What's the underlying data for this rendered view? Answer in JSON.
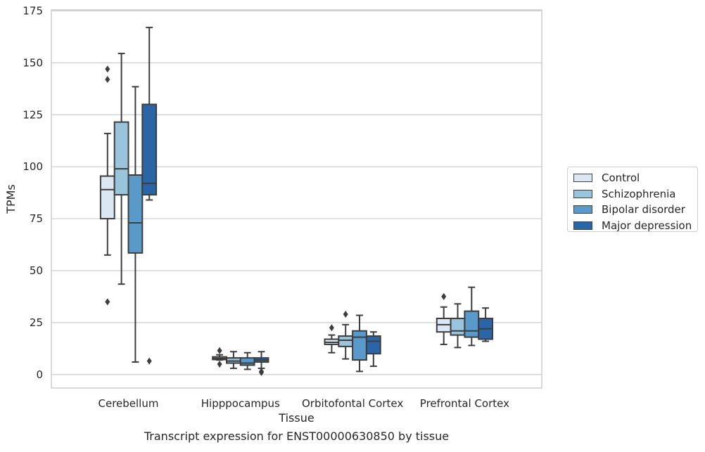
{
  "chart_data": {
    "type": "box",
    "xlabel": "Tissue",
    "ylabel": "TPMs",
    "caption": "Transcript expression for ENST00000630850 by tissue",
    "ylim": [
      -6.5,
      175.5
    ],
    "yticks": [
      0,
      25,
      50,
      75,
      100,
      125,
      150,
      175
    ],
    "grid": "horizontal",
    "legend_position": "right",
    "categories": [
      "Cerebellum",
      "Hipppocampus",
      "Orbitofontal Cortex",
      "Prefrontal Cortex"
    ],
    "series": [
      {
        "name": "Control",
        "color": "#dbe8f4",
        "boxes": [
          {
            "whisker_low": 57.5,
            "q1": 75,
            "median": 89,
            "q3": 95.5,
            "whisker_high": 116,
            "outliers": [
              147,
              142,
              35
            ]
          },
          {
            "whisker_low": 7,
            "q1": 7.2,
            "median": 7.8,
            "q3": 8.5,
            "whisker_high": 9.5,
            "outliers": [
              11.5,
              5
            ]
          },
          {
            "whisker_low": 10.5,
            "q1": 14.5,
            "median": 15.5,
            "q3": 17,
            "whisker_high": 19,
            "outliers": [
              22.5
            ]
          },
          {
            "whisker_low": 14.5,
            "q1": 20.5,
            "median": 24,
            "q3": 27,
            "whisker_high": 32.5,
            "outliers": [
              37.5
            ]
          }
        ]
      },
      {
        "name": "Schizophrenia",
        "color": "#9ac4dc",
        "boxes": [
          {
            "whisker_low": 43.5,
            "q1": 86.5,
            "median": 99,
            "q3": 121.5,
            "whisker_high": 154.5,
            "outliers": []
          },
          {
            "whisker_low": 3,
            "q1": 5.5,
            "median": 6.5,
            "q3": 8,
            "whisker_high": 11,
            "outliers": []
          },
          {
            "whisker_low": 7.5,
            "q1": 13.5,
            "median": 16.5,
            "q3": 18.5,
            "whisker_high": 24,
            "outliers": [
              29
            ]
          },
          {
            "whisker_low": 13,
            "q1": 19,
            "median": 21,
            "q3": 27,
            "whisker_high": 34,
            "outliers": []
          }
        ]
      },
      {
        "name": "Bipolar disorder",
        "color": "#5a9ac8",
        "boxes": [
          {
            "whisker_low": 6,
            "q1": 58.5,
            "median": 73,
            "q3": 96,
            "whisker_high": 138.5,
            "outliers": []
          },
          {
            "whisker_low": 2.5,
            "q1": 4.5,
            "median": 5.5,
            "q3": 8,
            "whisker_high": 10.5,
            "outliers": []
          },
          {
            "whisker_low": 1.5,
            "q1": 7,
            "median": 18,
            "q3": 21,
            "whisker_high": 28.5,
            "outliers": []
          },
          {
            "whisker_low": 14,
            "q1": 18,
            "median": 21,
            "q3": 30.5,
            "whisker_high": 42,
            "outliers": []
          }
        ]
      },
      {
        "name": "Major depression",
        "color": "#2a66a7",
        "boxes": [
          {
            "whisker_low": 84,
            "q1": 86.5,
            "median": 92,
            "q3": 130,
            "whisker_high": 167,
            "outliers": [
              6.5
            ]
          },
          {
            "whisker_low": 3,
            "q1": 6,
            "median": 7,
            "q3": 8,
            "whisker_high": 11,
            "outliers": [
              1.5,
              1
            ]
          },
          {
            "whisker_low": 4,
            "q1": 10,
            "median": 16,
            "q3": 18.5,
            "whisker_high": 20.5,
            "outliers": []
          },
          {
            "whisker_low": 16,
            "q1": 17,
            "median": 22,
            "q3": 27,
            "whisker_high": 32,
            "outliers": []
          }
        ]
      }
    ]
  }
}
